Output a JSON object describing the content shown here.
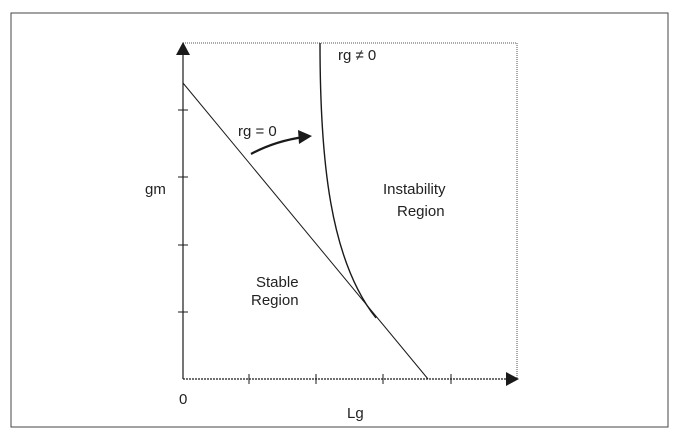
{
  "diagram": {
    "y_axis_label": "gm",
    "x_axis_label": "Lg",
    "origin_label": "0",
    "curve_label_rg_zero": "rg = 0",
    "curve_label_rg_nonzero": "rg ≠ 0",
    "region_stable_line1": "Stable",
    "region_stable_line2": "Region",
    "region_instability_line1": "Instability",
    "region_instability_line2": "Region"
  },
  "colors": {
    "line": "#1a1a1a",
    "background": "#ffffff"
  }
}
